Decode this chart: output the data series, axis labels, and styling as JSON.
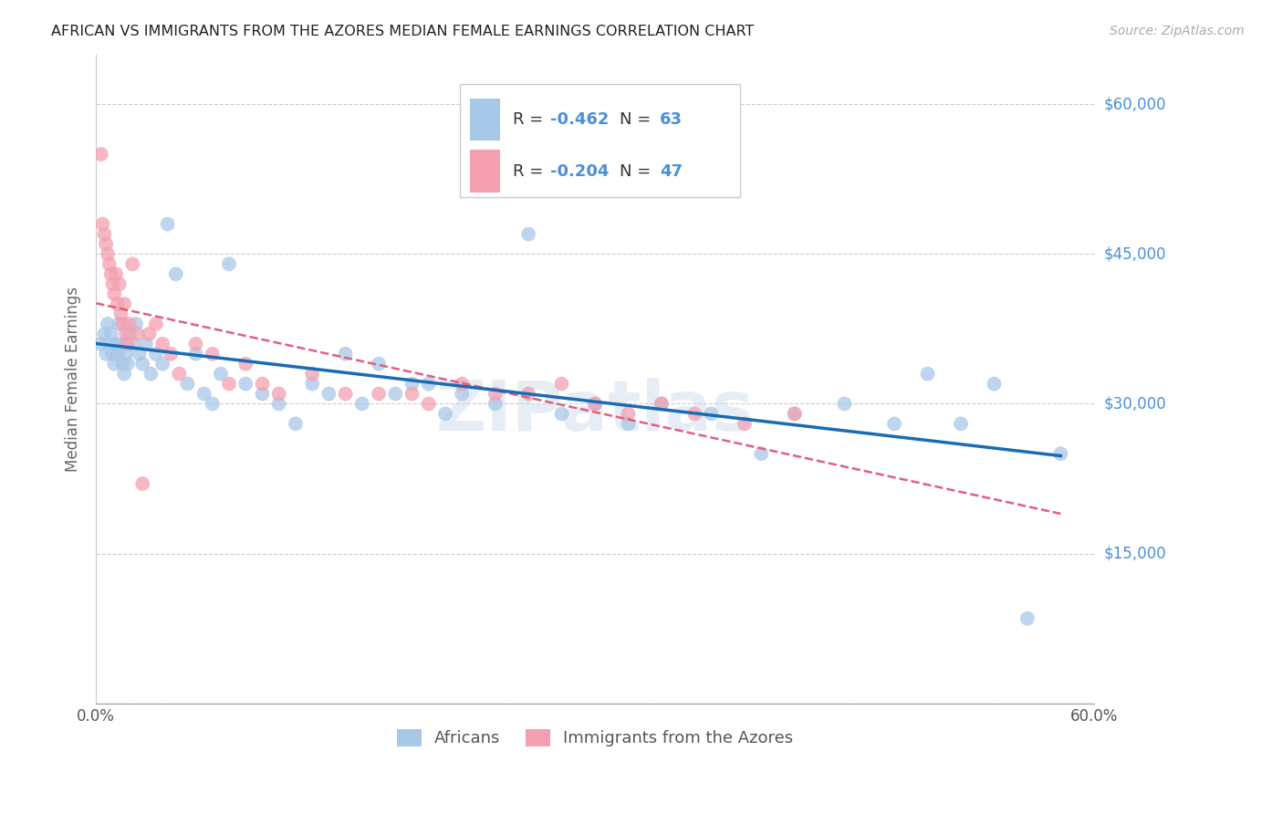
{
  "title": "AFRICAN VS IMMIGRANTS FROM THE AZORES MEDIAN FEMALE EARNINGS CORRELATION CHART",
  "source": "Source: ZipAtlas.com",
  "ylabel": "Median Female Earnings",
  "xlim": [
    0.0,
    0.6
  ],
  "ylim": [
    0,
    65000
  ],
  "yticks": [
    0,
    15000,
    30000,
    45000,
    60000
  ],
  "ytick_labels": [
    "",
    "$15,000",
    "$30,000",
    "$45,000",
    "$60,000"
  ],
  "xticks": [
    0.0,
    0.1,
    0.2,
    0.3,
    0.4,
    0.5,
    0.6
  ],
  "xtick_labels": [
    "0.0%",
    "",
    "",
    "",
    "",
    "",
    "60.0%"
  ],
  "r_african": -0.462,
  "n_african": 63,
  "r_azores": -0.204,
  "n_azores": 47,
  "blue_color": "#a8c8e8",
  "pink_color": "#f4a0b0",
  "blue_line_color": "#1a6bb5",
  "pink_line_color": "#e06080",
  "watermark": "ZIPatlas",
  "background_color": "#ffffff",
  "grid_color": "#cccccc",
  "axis_label_color": "#4a90d9",
  "legend_text_color": "#4a90d9",
  "african_x": [
    0.003,
    0.005,
    0.006,
    0.007,
    0.008,
    0.009,
    0.01,
    0.011,
    0.012,
    0.013,
    0.014,
    0.015,
    0.016,
    0.017,
    0.018,
    0.019,
    0.02,
    0.022,
    0.024,
    0.026,
    0.028,
    0.03,
    0.033,
    0.036,
    0.04,
    0.043,
    0.048,
    0.055,
    0.06,
    0.065,
    0.07,
    0.075,
    0.08,
    0.09,
    0.1,
    0.11,
    0.12,
    0.13,
    0.14,
    0.15,
    0.16,
    0.17,
    0.18,
    0.19,
    0.2,
    0.21,
    0.22,
    0.24,
    0.26,
    0.28,
    0.3,
    0.32,
    0.34,
    0.37,
    0.4,
    0.42,
    0.45,
    0.48,
    0.5,
    0.52,
    0.54,
    0.56,
    0.58
  ],
  "african_y": [
    36000,
    37000,
    35000,
    38000,
    36000,
    37000,
    35000,
    34000,
    36000,
    35000,
    38000,
    36000,
    34000,
    33000,
    35000,
    34000,
    37000,
    36000,
    38000,
    35000,
    34000,
    36000,
    33000,
    35000,
    34000,
    48000,
    43000,
    32000,
    35000,
    31000,
    30000,
    33000,
    44000,
    32000,
    31000,
    30000,
    28000,
    32000,
    31000,
    35000,
    30000,
    34000,
    31000,
    32000,
    32000,
    29000,
    31000,
    30000,
    47000,
    29000,
    30000,
    28000,
    30000,
    29000,
    25000,
    29000,
    30000,
    28000,
    33000,
    28000,
    32000,
    8500,
    25000
  ],
  "azores_x": [
    0.003,
    0.004,
    0.005,
    0.006,
    0.007,
    0.008,
    0.009,
    0.01,
    0.011,
    0.012,
    0.013,
    0.014,
    0.015,
    0.016,
    0.017,
    0.018,
    0.019,
    0.02,
    0.022,
    0.025,
    0.028,
    0.032,
    0.036,
    0.04,
    0.045,
    0.05,
    0.06,
    0.07,
    0.08,
    0.09,
    0.1,
    0.11,
    0.13,
    0.15,
    0.17,
    0.19,
    0.2,
    0.22,
    0.24,
    0.26,
    0.28,
    0.3,
    0.32,
    0.34,
    0.36,
    0.39,
    0.42
  ],
  "azores_y": [
    55000,
    48000,
    47000,
    46000,
    45000,
    44000,
    43000,
    42000,
    41000,
    43000,
    40000,
    42000,
    39000,
    38000,
    40000,
    37000,
    36000,
    38000,
    44000,
    37000,
    22000,
    37000,
    38000,
    36000,
    35000,
    33000,
    36000,
    35000,
    32000,
    34000,
    32000,
    31000,
    33000,
    31000,
    31000,
    31000,
    30000,
    32000,
    31000,
    31000,
    32000,
    30000,
    29000,
    30000,
    29000,
    28000,
    29000
  ]
}
